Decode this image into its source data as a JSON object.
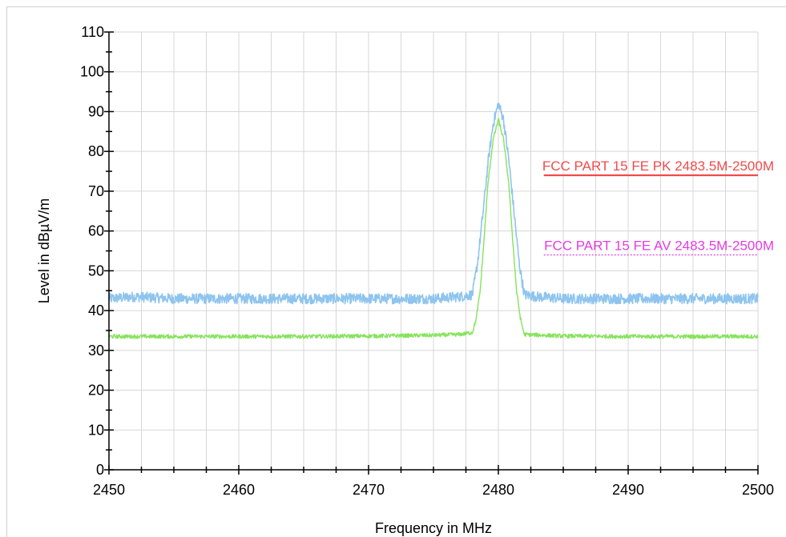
{
  "chart_data": {
    "type": "line",
    "xlabel": "Frequency in MHz",
    "ylabel": "Level in dBµV/m",
    "xlim": [
      2450,
      2500
    ],
    "ylim": [
      0,
      110
    ],
    "x_ticks": [
      "2450",
      "2460",
      "2470",
      "2480",
      "2490",
      "2500"
    ],
    "y_ticks": [
      "0",
      "10",
      "20",
      "30",
      "40",
      "50",
      "60",
      "70",
      "80",
      "90",
      "100",
      "110"
    ],
    "grid": true,
    "series": [
      {
        "color": "#8ec4ee",
        "x": [
          2450,
          2452,
          2455,
          2460,
          2465,
          2470,
          2475,
          2477,
          2478.0,
          2478.4,
          2478.8,
          2479.2,
          2479.6,
          2480.0,
          2480.4,
          2480.8,
          2481.2,
          2481.6,
          2482.0,
          2483,
          2485,
          2490,
          2495,
          2500
        ],
        "values": [
          43,
          43.5,
          43,
          43,
          43,
          43,
          43,
          43.5,
          44,
          52,
          64,
          77,
          87,
          92,
          88,
          78,
          65,
          52,
          44,
          43.5,
          43,
          43,
          43,
          43
        ],
        "noise": 1.3
      },
      {
        "color": "#86e35c",
        "x": [
          2450,
          2455,
          2460,
          2465,
          2470,
          2475,
          2477,
          2478.0,
          2478.3,
          2478.6,
          2478.9,
          2479.2,
          2479.6,
          2480.0,
          2480.4,
          2480.8,
          2481.1,
          2481.4,
          2481.7,
          2482.0,
          2485,
          2490,
          2495,
          2500
        ],
        "values": [
          33.5,
          33.5,
          33.5,
          33.5,
          33.6,
          33.8,
          34.0,
          34.5,
          38,
          45,
          58,
          72,
          83,
          88,
          83,
          72,
          58,
          45,
          38,
          34,
          33.6,
          33.5,
          33.5,
          33.5
        ],
        "noise": 0.5
      }
    ],
    "limits": [
      {
        "label": "FCC PART 15 FE PK 2483.5M-2500M",
        "x_start": 2483.5,
        "x_end": 2500,
        "value": 74,
        "color": "#ef4b4b",
        "style": "solid"
      },
      {
        "label": "FCC PART 15 FE AV 2483.5M-2500M",
        "x_start": 2483.5,
        "x_end": 2500,
        "value": 54,
        "color": "#e23de2",
        "style": "dotted"
      }
    ]
  }
}
